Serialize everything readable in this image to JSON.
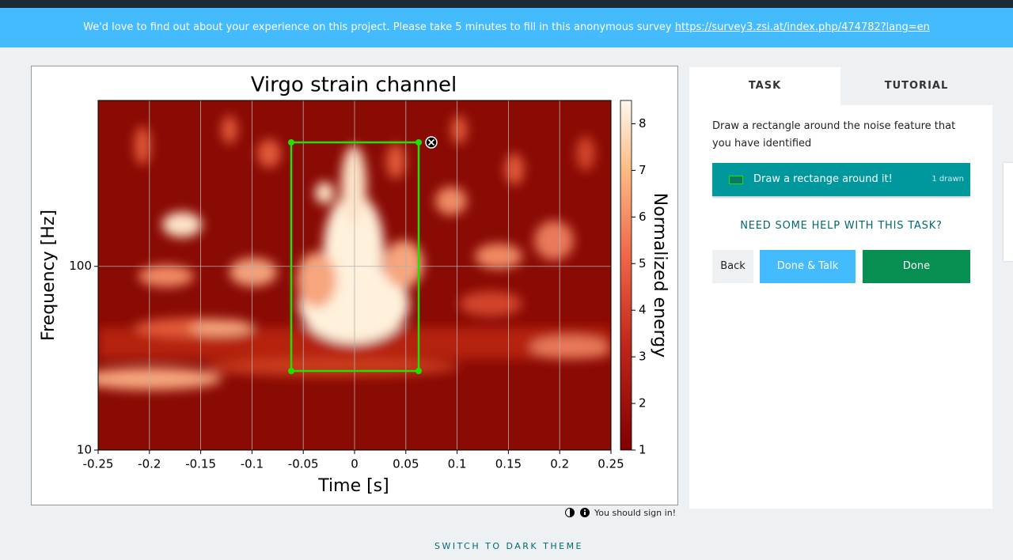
{
  "banner": {
    "text": "We'd love to find out about your experience on this project. Please take 5 minutes to fill in this anonymous survey",
    "link": "https://survey3.zsi.at/index.php/474782?lang=en"
  },
  "subject": {
    "type": "spectrogram",
    "title": "Virgo strain channel",
    "xlabel": "Time [s]",
    "ylabel": "Frequency [Hz]",
    "colorbar_label": "Normalized energy",
    "xlim": [
      -0.25,
      0.25
    ],
    "xticks": [
      -0.25,
      -0.2,
      -0.15,
      -0.1,
      -0.05,
      0,
      0.05,
      0.1,
      0.15,
      0.2,
      0.25
    ],
    "ylim": [
      10,
      800
    ],
    "yticks": [
      10,
      100
    ],
    "log_y": true,
    "grid": true,
    "clim": [
      1,
      8.5
    ],
    "cticks": [
      1,
      2,
      3,
      4,
      5,
      6,
      7,
      8
    ]
  },
  "footer_note": "You should sign in!",
  "tabs": [
    "TASK",
    "TUTORIAL"
  ],
  "task": {
    "instruction": "Draw a rectangle around the noise feature that you have identified",
    "tool_label": "Draw a rectange around it!",
    "tool_count": "1 drawn",
    "help": "NEED SOME HELP WITH THIS TASK?"
  },
  "buttons": [
    "Back",
    "Done & Talk",
    "Done"
  ],
  "theme_toggle": "SWITCH TO DARK THEME"
}
